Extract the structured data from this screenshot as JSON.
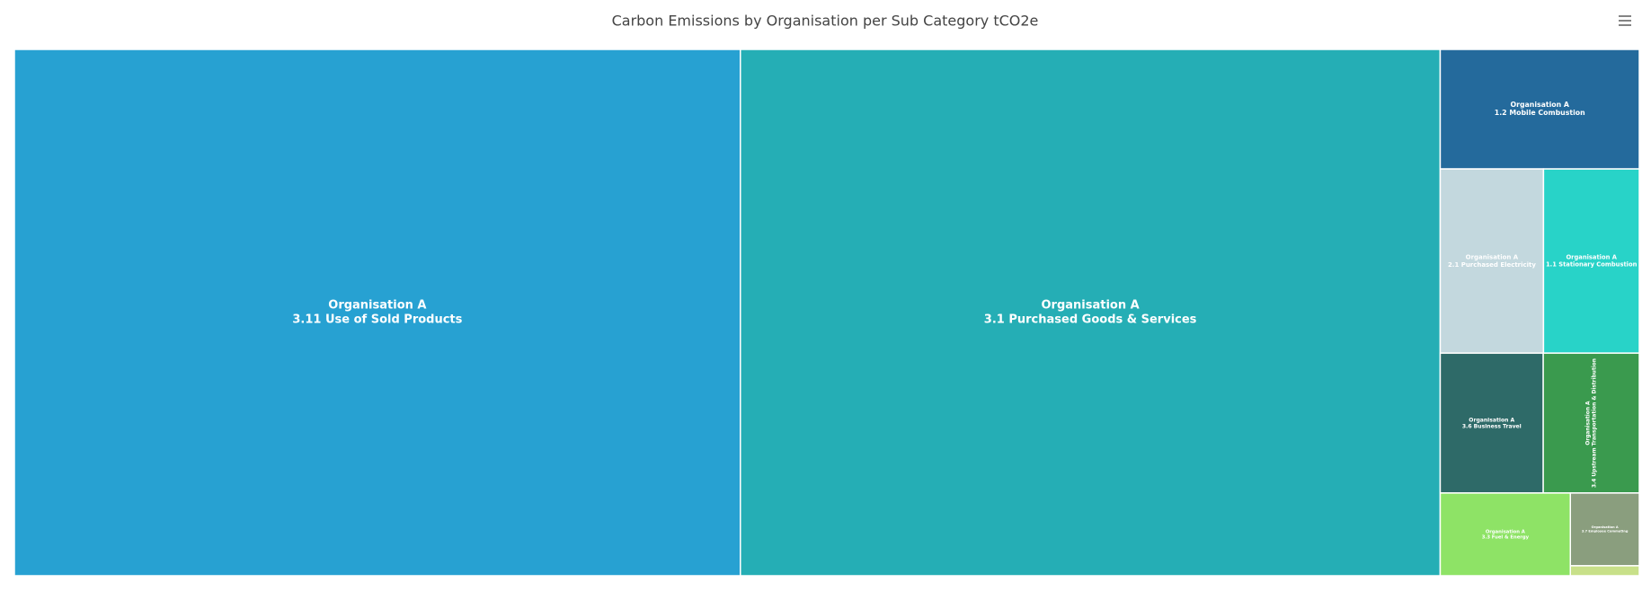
{
  "chart_data": {
    "type": "treemap",
    "title": "Carbon Emissions by Organisation per Sub Category tCO2e",
    "group": "Organisation A",
    "categories": [
      "3.11 Use of Sold Products",
      "3.1 Purchased Goods & Services",
      "1.2 Mobile Combustion",
      "2.1 Purchased Electricity",
      "1.1 Stationary Combustion",
      "3.6 Business Travel",
      "3.4 Upstream Transportation & Distribution",
      "3.3 Fuel & Energy",
      "3.7 Employee Commuting",
      null
    ],
    "values": [
      472,
      455,
      29.4,
      23.5,
      21.8,
      17.8,
      16.6,
      13.3,
      6.2,
      0.85
    ],
    "colors": [
      "#27a1d2",
      "#25aeb5",
      "#246a9c",
      "#c3d8de",
      "#28d3c8",
      "#2e6a68",
      "#3a9a4e",
      "#8ee366",
      "#8a9e7e",
      "#c8e089"
    ]
  }
}
